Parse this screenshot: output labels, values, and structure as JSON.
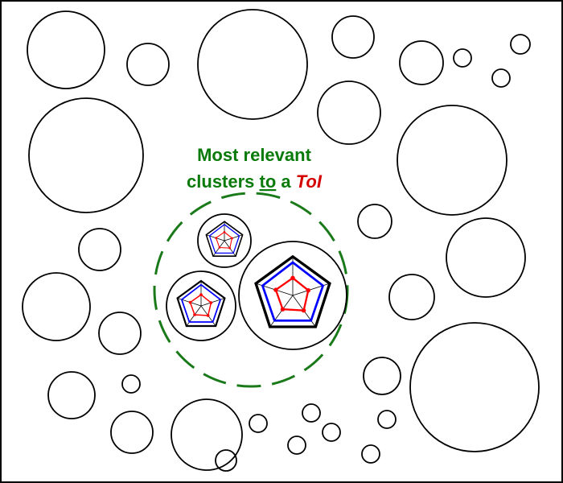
{
  "label": {
    "line1": "Most relevant",
    "line2_prefix": "clusters ",
    "line2_underlined": "to",
    "line2_middle": " a ",
    "line2_toi": "ToI"
  },
  "colors": {
    "label": "#0a7a0a",
    "toi": "#d40000",
    "dashed_circle": "#1a7a1a",
    "outline": "#000000",
    "series_blue": "#0000ff",
    "series_red": "#ff0000"
  },
  "icons": {
    "radar_small": "radar-chart-icon",
    "radar_medium": "radar-chart-icon",
    "radar_large": "radar-chart-icon"
  }
}
